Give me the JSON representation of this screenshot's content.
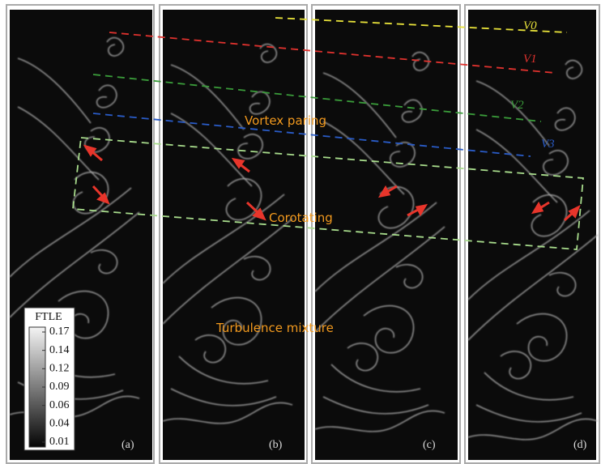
{
  "panels": [
    {
      "label": "(a)"
    },
    {
      "label": "(b)"
    },
    {
      "label": "(c)"
    },
    {
      "label": "(d)"
    }
  ],
  "annotations": {
    "vortex_pairing": "Vortex paring",
    "corotating": "Corotating",
    "turbulence": "Turbulence mixture"
  },
  "vortex_labels": [
    "V0",
    "V1",
    "V2",
    "V3"
  ],
  "colorbar": {
    "title": "FTLE",
    "ticks": [
      0.17,
      0.14,
      0.12,
      0.09,
      0.06,
      0.04,
      0.01
    ]
  }
}
